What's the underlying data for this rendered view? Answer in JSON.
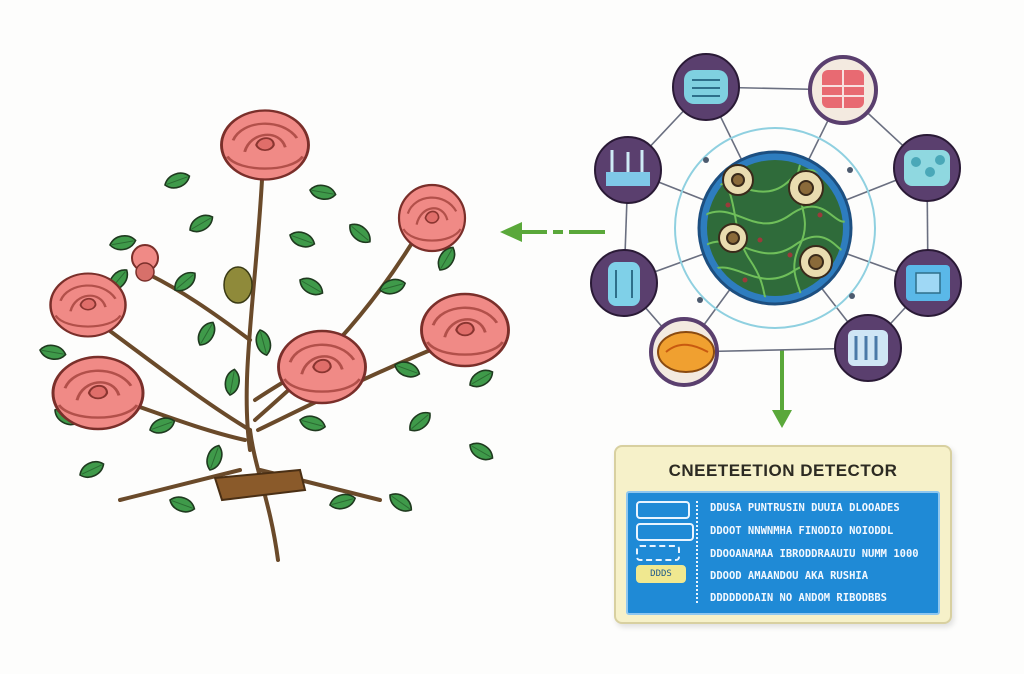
{
  "detector": {
    "title": "CNEETEETION DETECTOR",
    "lines": [
      "DDUSA PUNTRUSIN DUUIA DLOOADES",
      "DDOOT NNWNMHA FINODIO NOIODDL",
      "DDOOANAMAA IBRODDRAAUIU NUMM 1000",
      "DDOOD AMAANDOU AKA RUSHIA",
      "DDDDDODAIN NO ANDOM RIBODBBS"
    ],
    "indicator_label": "DDDS"
  },
  "colors": {
    "rose": "#f08a86",
    "leaf": "#3f9a4a",
    "stem": "#6a4a2a",
    "hub_ring": "#2e7dbf",
    "node_ring": "#5a3f6e",
    "arrow": "#5aa83a",
    "screen": "#1f8ad6",
    "panel": "#f6f1c9"
  },
  "nodes": [
    {
      "icon": "scan-icon"
    },
    {
      "icon": "grid-icon"
    },
    {
      "icon": "cells-icon"
    },
    {
      "icon": "device-icon"
    },
    {
      "icon": "chip-icon"
    },
    {
      "icon": "leaf-icon"
    },
    {
      "icon": "sensor-icon"
    },
    {
      "icon": "pods-icon"
    }
  ]
}
